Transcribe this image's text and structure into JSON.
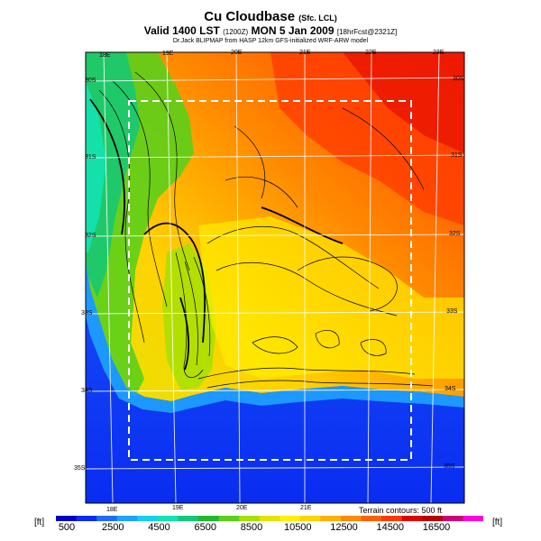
{
  "header": {
    "title": "Cu Cloudbase",
    "title_suffix": "(Sfc. LCL)",
    "valid_main": "Valid 1400 LST",
    "valid_small": "(1200Z)",
    "valid_date": "MON 5 Jan 2009",
    "forecast_info": "[18hrFcst@2321Z]",
    "credit": "Dr.Jack BLIPMAP from HASP 12km GFS-initialized WRF-ARW model"
  },
  "map": {
    "lon_labels_top": [
      "18E",
      "19E",
      "20E",
      "21E",
      "22E",
      "23E"
    ],
    "lon_labels_bottom": [
      "18E",
      "19E",
      "20E",
      "21E"
    ],
    "lat_labels_left": [
      "30S",
      "31S",
      "32S",
      "33S",
      "34S",
      "35S"
    ],
    "lat_labels_right": [
      "30S",
      "31S",
      "32S",
      "33S",
      "34S",
      "35S"
    ],
    "terrain_contours": "Terrain contours: 500 ft"
  },
  "legend": {
    "unit_left": "[ft]",
    "unit_right": "[ft]",
    "ticks": [
      "500",
      "2500",
      "4500",
      "6500",
      "8500",
      "10500",
      "12500",
      "14500",
      "16500"
    ],
    "colors": [
      "#0000c8",
      "#0a2cf0",
      "#1f6bff",
      "#1ea3ff",
      "#14d0f0",
      "#12e3b0",
      "#12c878",
      "#1fba2a",
      "#5ccf1a",
      "#a6e000",
      "#e7e200",
      "#fff000",
      "#ffd200",
      "#ffb000",
      "#ff8a00",
      "#ff6000",
      "#ff3a00",
      "#e00000",
      "#b80000",
      "#d0007a",
      "#ff00e0"
    ]
  }
}
